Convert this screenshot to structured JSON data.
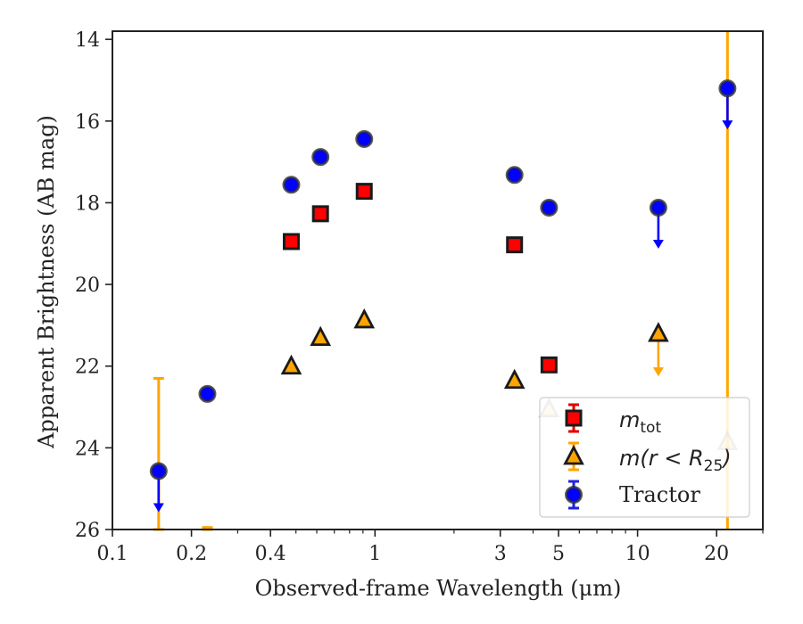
{
  "chart_data": {
    "type": "scatter",
    "xlabel": "Observed-frame Wavelength (μm)",
    "ylabel": "Apparent Brightness (AB mag)",
    "xscale": "log",
    "xlim": [
      0.1,
      30
    ],
    "ylim": [
      26,
      13.8
    ],
    "y_inverted": true,
    "x_ticks": [
      {
        "value": 0.1,
        "label": "0.1"
      },
      {
        "value": 0.2,
        "label": "0.2"
      },
      {
        "value": 0.4,
        "label": "0.4"
      },
      {
        "value": 1,
        "label": "1"
      },
      {
        "value": 3,
        "label": "3"
      },
      {
        "value": 5,
        "label": "5"
      },
      {
        "value": 10,
        "label": "10"
      },
      {
        "value": 20,
        "label": "20"
      }
    ],
    "y_ticks": [
      {
        "value": 14,
        "label": "14"
      },
      {
        "value": 16,
        "label": "16"
      },
      {
        "value": 18,
        "label": "18"
      },
      {
        "value": 20,
        "label": "20"
      },
      {
        "value": 22,
        "label": "22"
      },
      {
        "value": 24,
        "label": "24"
      },
      {
        "value": 26,
        "label": "26"
      }
    ],
    "grid": false,
    "legend_position": "lower-right",
    "series": [
      {
        "name": "m_tot",
        "marker": "square",
        "color": "#ff0000",
        "points": [
          {
            "x": 0.48,
            "y": 18.95
          },
          {
            "x": 0.62,
            "y": 18.27
          },
          {
            "x": 0.91,
            "y": 17.72
          },
          {
            "x": 3.4,
            "y": 19.03
          },
          {
            "x": 4.6,
            "y": 21.97
          }
        ]
      },
      {
        "name": "m(r < R25)",
        "marker": "triangle",
        "color": "#ffa500",
        "points": [
          {
            "x": 0.48,
            "y": 22.0
          },
          {
            "x": 0.62,
            "y": 21.3
          },
          {
            "x": 0.91,
            "y": 20.87
          },
          {
            "x": 3.4,
            "y": 22.35
          },
          {
            "x": 4.6,
            "y": 23.05
          },
          {
            "x": 12,
            "y": 21.2,
            "upper_limit": true
          },
          {
            "x": 22,
            "y": 23.85
          }
        ],
        "error_bars": [
          {
            "x": 0.15,
            "y_low": 22.3,
            "y_high": 26.0
          },
          {
            "x": 0.23,
            "y_low": 25.95,
            "y_high": 26.0
          },
          {
            "x": 22,
            "y_low": 13.8,
            "y_high": 26.0
          }
        ]
      },
      {
        "name": "Tractor",
        "marker": "circle",
        "color": "#0000ff",
        "points": [
          {
            "x": 0.15,
            "y": 24.57,
            "upper_limit": true
          },
          {
            "x": 0.23,
            "y": 22.68
          },
          {
            "x": 0.48,
            "y": 17.56
          },
          {
            "x": 0.62,
            "y": 16.88
          },
          {
            "x": 0.91,
            "y": 16.44
          },
          {
            "x": 3.4,
            "y": 17.32
          },
          {
            "x": 4.6,
            "y": 18.12
          },
          {
            "x": 12,
            "y": 18.12,
            "upper_limit": true
          },
          {
            "x": 22,
            "y": 15.2,
            "upper_limit": true
          }
        ]
      }
    ],
    "legend": {
      "items": [
        {
          "marker": "square",
          "color": "#ff0000"
        },
        {
          "marker": "triangle",
          "color": "#ffa500"
        },
        {
          "marker": "circle",
          "color": "#0000ff",
          "label": "Tractor"
        }
      ]
    }
  }
}
